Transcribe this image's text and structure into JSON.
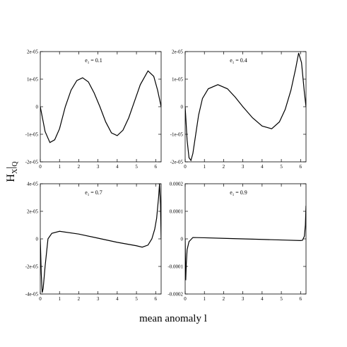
{
  "xlabel": "mean anomaly l",
  "ylabel": {
    "main": "H",
    "sub": "X",
    "bar": "|",
    "sub2": "Q"
  },
  "chart_data": [
    {
      "type": "line",
      "annotation": {
        "symbol": "e",
        "subscript": "1",
        "text": "= 0.1"
      },
      "color": "#000000",
      "x": [
        0,
        0.25,
        0.5,
        0.75,
        1,
        1.3,
        1.6,
        1.9,
        2.2,
        2.5,
        2.8,
        3.1,
        3.4,
        3.7,
        4.0,
        4.3,
        4.6,
        4.9,
        5.2,
        5.6,
        5.9,
        6.1,
        6.2832
      ],
      "values": [
        0,
        -9e-06,
        -1.3e-05,
        -1.2e-05,
        -8e-06,
        0,
        6e-06,
        9.5e-06,
        1.05e-05,
        9e-06,
        5e-06,
        0,
        -5.5e-06,
        -9.5e-06,
        -1.05e-05,
        -8.5e-06,
        -4e-06,
        2e-06,
        8e-06,
        1.3e-05,
        1.1e-05,
        6e-06,
        0
      ],
      "xlim": [
        0,
        6.2832
      ],
      "xticks": [
        0,
        1,
        2,
        3,
        4,
        5,
        6
      ],
      "ylim": [
        -2e-05,
        2e-05
      ],
      "yticks": [
        {
          "value": -2e-05,
          "label": "-2e-05"
        },
        {
          "value": -1e-05,
          "label": "-1e-05"
        },
        0,
        {
          "value": 1e-05,
          "label": "1e-05"
        },
        {
          "value": 2e-05,
          "label": "2e-05"
        }
      ]
    },
    {
      "type": "line",
      "annotation": {
        "symbol": "e",
        "subscript": "1",
        "text": "= 0.4"
      },
      "color": "#000000",
      "x": [
        0,
        0.1,
        0.2,
        0.3,
        0.4,
        0.55,
        0.7,
        0.9,
        1.2,
        1.7,
        2.2,
        2.6,
        3.0,
        3.5,
        4.0,
        4.5,
        4.9,
        5.2,
        5.5,
        5.75,
        5.9,
        6.05,
        6.2,
        6.2832
      ],
      "values": [
        0,
        -1.2e-05,
        -1.85e-05,
        -1.95e-05,
        -1.7e-05,
        -1e-05,
        -3e-06,
        3e-06,
        6.5e-06,
        8e-06,
        6.5e-06,
        3.5e-06,
        0,
        -4e-06,
        -7e-06,
        -8e-06,
        -5.5e-06,
        -1e-06,
        6e-06,
        1.4e-05,
        1.95e-05,
        1.6e-05,
        5e-06,
        0
      ],
      "xlim": [
        0,
        6.2832
      ],
      "xticks": [
        0,
        1,
        2,
        3,
        4,
        5,
        6
      ],
      "ylim": [
        -2e-05,
        2e-05
      ],
      "yticks": [
        {
          "value": -2e-05,
          "label": "-2e-05"
        },
        {
          "value": -1e-05,
          "label": "-1e-05"
        },
        0,
        {
          "value": 1e-05,
          "label": "1e-05"
        },
        {
          "value": 2e-05,
          "label": "2e-05"
        }
      ]
    },
    {
      "type": "line",
      "annotation": {
        "symbol": "e",
        "subscript": "1",
        "text": "= 0.7"
      },
      "color": "#000000",
      "x": [
        0,
        0.05,
        0.1,
        0.15,
        0.25,
        0.4,
        0.6,
        1.0,
        2,
        3,
        4,
        5,
        5.3,
        5.6,
        5.8,
        5.95,
        6.05,
        6.15,
        6.2,
        6.25,
        6.2832
      ],
      "values": [
        0,
        -2.5e-05,
        -3.9e-05,
        -3.6e-05,
        -2e-05,
        0,
        4e-06,
        5.5e-06,
        3.5e-06,
        5e-07,
        -2.5e-06,
        -5e-06,
        -6e-06,
        -4.5e-06,
        0,
        7e-06,
        1.5e-05,
        3e-05,
        4e-05,
        2.5e-05,
        0
      ],
      "xlim": [
        0,
        6.2832
      ],
      "xticks": [
        0,
        1,
        2,
        3,
        4,
        5,
        6
      ],
      "ylim": [
        -4e-05,
        4e-05
      ],
      "yticks": [
        {
          "value": -4e-05,
          "label": "-4e-05"
        },
        {
          "value": -2e-05,
          "label": "-2e-05"
        },
        0,
        {
          "value": 2e-05,
          "label": "2e-05"
        },
        {
          "value": 4e-05,
          "label": "4e-05"
        }
      ]
    },
    {
      "type": "line",
      "annotation": {
        "symbol": "e",
        "subscript": "1",
        "text": "= 0.9"
      },
      "color": "#000000",
      "x": [
        0,
        0.03,
        0.06,
        0.1,
        0.2,
        0.4,
        1,
        2,
        3,
        4,
        5,
        6,
        6.1,
        6.2,
        6.25,
        6.2832
      ],
      "values": [
        0,
        -0.00015,
        -9e-05,
        -4e-05,
        -1e-05,
        5e-06,
        4e-06,
        2e-06,
        0,
        -2e-06,
        -4e-06,
        -6e-06,
        -5e-06,
        1e-05,
        5e-05,
        0.00012
      ],
      "xlim": [
        0,
        6.2832
      ],
      "xticks": [
        0,
        1,
        2,
        3,
        4,
        5,
        6
      ],
      "ylim": [
        -0.0002,
        0.0002
      ],
      "yticks": [
        -0.0002,
        -0.0001,
        0,
        0.0001,
        0.0002
      ]
    }
  ]
}
